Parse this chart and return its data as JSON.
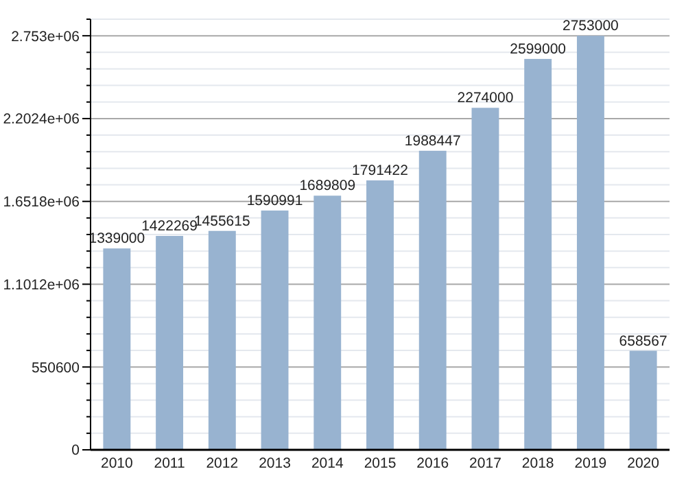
{
  "chart_data": {
    "type": "bar",
    "categories": [
      "2010",
      "2011",
      "2012",
      "2013",
      "2014",
      "2015",
      "2016",
      "2017",
      "2018",
      "2019",
      "2020"
    ],
    "values": [
      1339000,
      1422269,
      1455615,
      1590991,
      1689809,
      1791422,
      1988447,
      2274000,
      2599000,
      2753000,
      658567
    ],
    "color": "#98b3d0",
    "data_labels": true,
    "grid": "y",
    "ylim": [
      0,
      2863120
    ],
    "yticks": [
      0,
      {
        "value": 110120,
        "label": null
      },
      {
        "value": 220240,
        "label": null
      },
      {
        "value": 330360,
        "label": null
      },
      {
        "value": 440480,
        "label": null
      },
      550600,
      {
        "value": 660720,
        "label": null
      },
      {
        "value": 770840,
        "label": null
      },
      {
        "value": 880960,
        "label": null
      },
      {
        "value": 991080,
        "label": null
      },
      {
        "value": 1101200,
        "label": "1.1012e+06"
      },
      {
        "value": 1211320,
        "label": null
      },
      {
        "value": 1321440,
        "label": null
      },
      {
        "value": 1431560,
        "label": null
      },
      {
        "value": 1541680,
        "label": null
      },
      {
        "value": 1651800,
        "label": "1.6518e+06"
      },
      {
        "value": 1761920,
        "label": null
      },
      {
        "value": 1872040,
        "label": null
      },
      {
        "value": 1982160,
        "label": null
      },
      {
        "value": 2092280,
        "label": null
      },
      {
        "value": 2202400,
        "label": "2.2024e+06"
      },
      {
        "value": 2312520,
        "label": null
      },
      {
        "value": 2422640,
        "label": null
      },
      {
        "value": 2532760,
        "label": null
      },
      {
        "value": 2642880,
        "label": null
      },
      {
        "value": 2753000,
        "label": "2.753e+06"
      },
      {
        "value": 2863120,
        "label": null
      }
    ]
  }
}
